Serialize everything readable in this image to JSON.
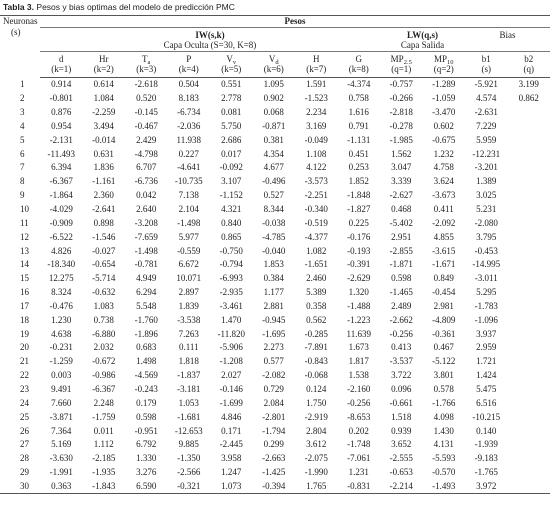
{
  "caption": {
    "label": "Tabla 3.",
    "text": "Pesos y bias optimas del modelo de predicción PMC"
  },
  "header": {
    "neuronas": "Neuronas",
    "neuronas_unit": "(s)",
    "pesos": "Pesos",
    "iw": "IW(s,k)",
    "iw_sub": "Capa Oculta (S=30, K=8)",
    "lw": "LW(q,s)",
    "lw_sub": "Capa Salida",
    "bias": "Bias",
    "columns": [
      {
        "name": "d",
        "index": "(k=1)"
      },
      {
        "name": "Hr",
        "index": "(k=2)"
      },
      {
        "name": "T",
        "sub": "a",
        "index": "(k=3)"
      },
      {
        "name": "P",
        "index": "(k=4)"
      },
      {
        "name": "V",
        "sub": "v",
        "index": "(k=5)"
      },
      {
        "name": "V",
        "sub": "d",
        "index": "(k=6)"
      },
      {
        "name": "H",
        "index": "(k=7)"
      },
      {
        "name": "G",
        "index": "(k=8)"
      },
      {
        "name": "MP",
        "sub": "2.5",
        "index": "(q=1)"
      },
      {
        "name": "MP",
        "sub": "10",
        "index": "(q=2)"
      },
      {
        "name": "b1",
        "index": "(s)"
      },
      {
        "name": "b2",
        "index": "(q)"
      }
    ]
  },
  "table": {
    "rows": [
      {
        "neurona": 1,
        "values": [
          "0.914",
          "0.614",
          "-2.618",
          "0.504",
          "0.551",
          "1.095",
          "1.591",
          "-4.374",
          "-0.757",
          "-1.289",
          "-5.921",
          "3.199"
        ]
      },
      {
        "neurona": 2,
        "values": [
          "-0.801",
          "1.084",
          "0.520",
          "8.183",
          "2.778",
          "0.902",
          "-1.523",
          "0.758",
          "-0.266",
          "-1.059",
          "4.574",
          "0.862"
        ]
      },
      {
        "neurona": 3,
        "values": [
          "0.876",
          "-2.259",
          "-0.145",
          "-6.734",
          "0.081",
          "0.068",
          "2.234",
          "1.616",
          "-2.818",
          "-3.470",
          "-2.631"
        ]
      },
      {
        "neurona": 4,
        "values": [
          "0.954",
          "3.494",
          "-0.467",
          "-2.036",
          "5.750",
          "-0.871",
          "3.169",
          "0.791",
          "-0.278",
          "0.602",
          "7.229"
        ]
      },
      {
        "neurona": 5,
        "values": [
          "-2.131",
          "-0.014",
          "2.429",
          "11.938",
          "2.686",
          "0.381",
          "-0.049",
          "-1.131",
          "-1.985",
          "-0.675",
          "5.959"
        ]
      },
      {
        "neurona": 6,
        "values": [
          "-11.493",
          "0.631",
          "-4.798",
          "0.227",
          "0.017",
          "4.354",
          "1.108",
          "0.451",
          "1.562",
          "1.232",
          "-12.231"
        ]
      },
      {
        "neurona": 7,
        "values": [
          "6.394",
          "1.836",
          "6.707",
          "-4.641",
          "-0.092",
          "4.677",
          "4.122",
          "0.253",
          "3.047",
          "4.758",
          "-3.201"
        ]
      },
      {
        "neurona": 8,
        "values": [
          "-6.367",
          "-1.161",
          "-6.736",
          "-10.735",
          "3.107",
          "-0.496",
          "-3.573",
          "1.852",
          "3.339",
          "3.624",
          "1.389"
        ]
      },
      {
        "neurona": 9,
        "values": [
          "-1.864",
          "2.360",
          "0.042",
          "7.138",
          "-1.152",
          "0.527",
          "-2.251",
          "-1.848",
          "-2.627",
          "-3.673",
          "3.025"
        ]
      },
      {
        "neurona": 10,
        "values": [
          "-4.029",
          "-2.641",
          "2.640",
          "2.104",
          "4.321",
          "8.344",
          "-0.340",
          "-1.827",
          "0.468",
          "0.411",
          "5.231"
        ]
      },
      {
        "neurona": 11,
        "values": [
          "-0.909",
          "0.898",
          "-3.208",
          "-1.498",
          "0.840",
          "-0.038",
          "-0.519",
          "0.225",
          "-5.402",
          "-2.092",
          "-2.080"
        ]
      },
      {
        "neurona": 12,
        "values": [
          "-6.522",
          "-1.546",
          "-7.659",
          "5.977",
          "0.865",
          "-4.785",
          "-4.377",
          "-0.176",
          "2.951",
          "4.855",
          "3.795"
        ]
      },
      {
        "neurona": 13,
        "values": [
          "4.826",
          "-0.027",
          "-1.498",
          "-0.559",
          "-0.750",
          "-0.040",
          "1.082",
          "-0.193",
          "-2.855",
          "-3.615",
          "-0.453"
        ]
      },
      {
        "neurona": 14,
        "values": [
          "-18.340",
          "-0.654",
          "-0.781",
          "6.672",
          "-0.794",
          "1.853",
          "-1.651",
          "-0.391",
          "-1.871",
          "-1.671",
          "-14.995"
        ]
      },
      {
        "neurona": 15,
        "values": [
          "12.275",
          "-5.714",
          "4.949",
          "10.071",
          "-6.993",
          "0.384",
          "2.460",
          "-2.629",
          "0.598",
          "0.849",
          "-3.011"
        ]
      },
      {
        "neurona": 16,
        "values": [
          "8.324",
          "-0.632",
          "6.294",
          "2.897",
          "-2.935",
          "1.177",
          "5.389",
          "1.320",
          "-1.465",
          "-0.454",
          "5.295"
        ]
      },
      {
        "neurona": 17,
        "values": [
          "-0.476",
          "1.083",
          "5.548",
          "1.839",
          "-3.461",
          "2.881",
          "0.358",
          "-1.488",
          "2.489",
          "2.981",
          "-1.783"
        ]
      },
      {
        "neurona": 18,
        "values": [
          "1.230",
          "0.738",
          "-1.760",
          "-3.538",
          "1.470",
          "-0.945",
          "0.562",
          "-1.223",
          "-2.662",
          "-4.809",
          "-1.096"
        ]
      },
      {
        "neurona": 19,
        "values": [
          "4.638",
          "-6.880",
          "-1.896",
          "7.263",
          "-11.820",
          "-1.695",
          "-0.285",
          "11.639",
          "-0.256",
          "-0.361",
          "3.937"
        ]
      },
      {
        "neurona": 20,
        "values": [
          "-0.231",
          "2.032",
          "0.683",
          "0.111",
          "-5.906",
          "2.273",
          "-7.891",
          "1.673",
          "0.413",
          "0.467",
          "2.959"
        ]
      },
      {
        "neurona": 21,
        "values": [
          "-1.259",
          "-0.672",
          "1.498",
          "1.818",
          "-1.208",
          "0.577",
          "-0.843",
          "1.817",
          "-3.537",
          "-5.122",
          "1.721"
        ]
      },
      {
        "neurona": 22,
        "values": [
          "0.003",
          "-0.986",
          "-4.569",
          "-1.837",
          "2.027",
          "-2.082",
          "-0.068",
          "1.538",
          "3.722",
          "3.801",
          "1.424"
        ]
      },
      {
        "neurona": 23,
        "values": [
          "9.491",
          "-6.367",
          "-0.243",
          "-3.181",
          "-0.146",
          "0.729",
          "0.124",
          "-2.160",
          "0.096",
          "0.578",
          "5.475"
        ]
      },
      {
        "neurona": 24,
        "values": [
          "7.660",
          "2.248",
          "0.179",
          "1.053",
          "-1.699",
          "2.084",
          "1.750",
          "-0.256",
          "-0.661",
          "-1.766",
          "6.516"
        ]
      },
      {
        "neurona": 25,
        "values": [
          "-3.871",
          "-1.759",
          "0.598",
          "-1.681",
          "4.846",
          "-2.801",
          "-2.919",
          "-8.653",
          "1.518",
          "4.098",
          "-10.215"
        ]
      },
      {
        "neurona": 26,
        "values": [
          "7.364",
          "0.011",
          "-0.951",
          "-12.653",
          "0.171",
          "-1.794",
          "2.804",
          "0.202",
          "0.939",
          "1.430",
          "0.140"
        ]
      },
      {
        "neurona": 27,
        "values": [
          "5.169",
          "1.112",
          "6.792",
          "9.885",
          "-2.445",
          "0.299",
          "3.612",
          "-1.748",
          "3.652",
          "4.131",
          "-1.939"
        ]
      },
      {
        "neurona": 28,
        "values": [
          "-3.630",
          "-2.185",
          "1.330",
          "-1.350",
          "3.958",
          "-2.663",
          "-2.075",
          "-7.061",
          "-2.555",
          "-5.593",
          "-9.183"
        ]
      },
      {
        "neurona": 29,
        "values": [
          "-1.991",
          "-1.935",
          "3.276",
          "-2.566",
          "1.247",
          "-1.425",
          "-1.990",
          "1.231",
          "-0.653",
          "-0.570",
          "-1.765"
        ]
      },
      {
        "neurona": 30,
        "values": [
          "0.363",
          "-1.843",
          "6.590",
          "-0.321",
          "1.073",
          "-0.394",
          "1.765",
          "-0.831",
          "-2.214",
          "-1.493",
          "3.972"
        ]
      }
    ]
  }
}
